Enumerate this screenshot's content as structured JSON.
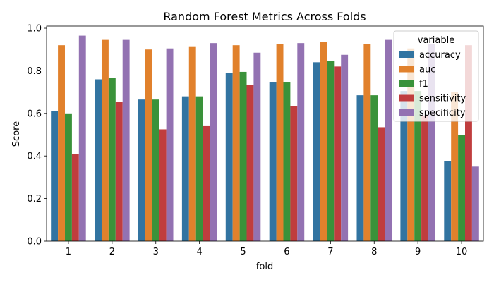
{
  "chart_data": {
    "type": "bar",
    "title": "Random Forest Metrics Across Folds",
    "xlabel": "fold",
    "ylabel": "Score",
    "ylim": [
      0,
      1.01
    ],
    "yticks": [
      "0.0",
      "0.2",
      "0.4",
      "0.6",
      "0.8",
      "1.0"
    ],
    "grid": false,
    "legend": {
      "title": "variable",
      "placement": "top-right"
    },
    "categories": [
      "1",
      "2",
      "3",
      "4",
      "5",
      "6",
      "7",
      "8",
      "9",
      "10"
    ],
    "series": [
      {
        "name": "accuracy",
        "color": "#3274a1",
        "values": [
          0.61,
          0.76,
          0.665,
          0.68,
          0.79,
          0.745,
          0.84,
          0.685,
          0.705,
          0.375
        ]
      },
      {
        "name": "auc",
        "color": "#e1812c",
        "values": [
          0.92,
          0.945,
          0.9,
          0.915,
          0.92,
          0.925,
          0.935,
          0.925,
          0.905,
          0.7
        ]
      },
      {
        "name": "f1",
        "color": "#3a923a",
        "values": [
          0.6,
          0.765,
          0.665,
          0.68,
          0.795,
          0.745,
          0.845,
          0.685,
          0.705,
          0.5
        ]
      },
      {
        "name": "sensitivity",
        "color": "#c03d3e",
        "values": [
          0.41,
          0.655,
          0.525,
          0.54,
          0.735,
          0.635,
          0.82,
          0.535,
          0.59,
          0.92
        ]
      },
      {
        "name": "specificity",
        "color": "#9372b2",
        "values": [
          0.965,
          0.945,
          0.905,
          0.93,
          0.885,
          0.93,
          0.875,
          0.945,
          0.925,
          0.35
        ]
      }
    ]
  }
}
